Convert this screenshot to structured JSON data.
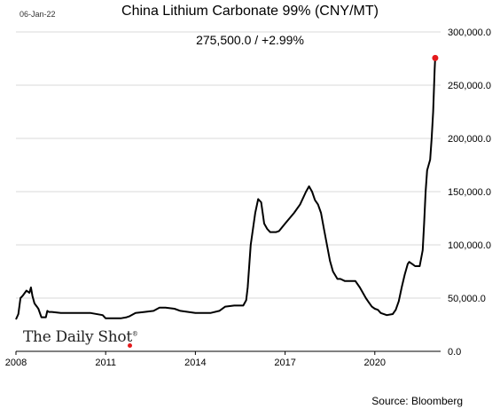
{
  "header": {
    "date": "06-Jan-22",
    "title": "China Lithium Carbonate 99% (CNY/MT)",
    "last_value": "275,500.0  /  +2.99%"
  },
  "branding": {
    "logo_text": "The Daily Shot",
    "logo_mark": "®"
  },
  "footer": {
    "source": "Source: Bloomberg"
  },
  "chart_data": {
    "type": "line",
    "title": "China Lithium Carbonate 99% (CNY/MT)",
    "xlabel": "",
    "ylabel": "",
    "x_range": [
      2008.0,
      2022.2
    ],
    "ylim": [
      0,
      300000
    ],
    "y_ticks": [
      0,
      50000,
      100000,
      150000,
      200000,
      250000,
      300000
    ],
    "y_tick_labels": [
      "0.0",
      "50,000.0",
      "100,000.0",
      "150,000.0",
      "200,000.0",
      "250,000.0",
      "300,000.0"
    ],
    "x_ticks": [
      2008,
      2011,
      2014,
      2017,
      2020
    ],
    "x_tick_labels": [
      "2008",
      "2011",
      "2014",
      "2017",
      "2020"
    ],
    "grid": "horizontal",
    "line_color": "#000000",
    "marker_color": "#e41a1c",
    "series": [
      {
        "x": [
          2008.0,
          2008.08,
          2008.15,
          2008.22,
          2008.35,
          2008.45,
          2008.5,
          2008.55,
          2008.62,
          2008.7,
          2008.75,
          2008.85,
          2009.0,
          2009.05,
          2009.1,
          2009.2,
          2009.5,
          2010.0,
          2010.5,
          2010.9,
          2011.0,
          2011.5,
          2011.7,
          2011.8,
          2012.0,
          2012.3,
          2012.6,
          2012.8,
          2013.0,
          2013.3,
          2013.5,
          2014.0,
          2014.5,
          2014.8,
          2015.0,
          2015.3,
          2015.6,
          2015.7,
          2015.75,
          2015.8,
          2015.85,
          2015.9,
          2015.95,
          2016.0,
          2016.1,
          2016.2,
          2016.25,
          2016.3,
          2016.4,
          2016.5,
          2016.6,
          2016.7,
          2016.8,
          2017.0,
          2017.3,
          2017.5,
          2017.7,
          2017.8,
          2017.9,
          2018.0,
          2018.1,
          2018.2,
          2018.3,
          2018.4,
          2018.5,
          2018.6,
          2018.75,
          2018.85,
          2019.0,
          2019.2,
          2019.35,
          2019.5,
          2019.6,
          2019.7,
          2019.8,
          2019.9,
          2020.0,
          2020.1,
          2020.2,
          2020.4,
          2020.6,
          2020.7,
          2020.8,
          2020.9,
          2021.0,
          2021.1,
          2021.15,
          2021.2,
          2021.25,
          2021.35,
          2021.5,
          2021.6,
          2021.65,
          2021.7,
          2021.75,
          2021.8,
          2021.85,
          2021.9,
          2021.95,
          2022.0,
          2022.02
        ],
        "y": [
          30000,
          35000,
          50000,
          52000,
          57000,
          55000,
          60000,
          52000,
          45000,
          42000,
          40000,
          32000,
          32000,
          38000,
          37000,
          37000,
          36000,
          36000,
          36000,
          34000,
          31000,
          31000,
          32000,
          33000,
          36000,
          37000,
          38000,
          41000,
          41000,
          40000,
          38000,
          36000,
          36000,
          38000,
          42000,
          43000,
          43000,
          48000,
          60000,
          80000,
          100000,
          110000,
          120000,
          130000,
          143000,
          140000,
          130000,
          120000,
          115000,
          112000,
          112000,
          112000,
          113000,
          120000,
          130000,
          138000,
          150000,
          155000,
          150000,
          142000,
          138000,
          130000,
          115000,
          100000,
          85000,
          75000,
          68000,
          68000,
          66000,
          66000,
          66000,
          60000,
          55000,
          50000,
          46000,
          42000,
          40000,
          39000,
          36000,
          34000,
          35000,
          39000,
          47000,
          60000,
          72000,
          82000,
          84000,
          83000,
          82000,
          80000,
          80000,
          95000,
          120000,
          150000,
          170000,
          175000,
          180000,
          200000,
          225000,
          265000,
          275500
        ]
      }
    ]
  }
}
